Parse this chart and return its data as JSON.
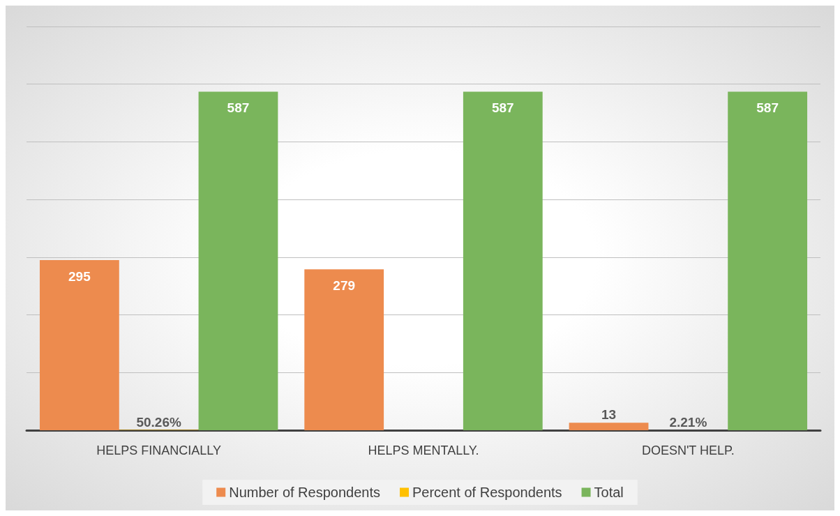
{
  "chart_data": {
    "type": "bar",
    "categories": [
      "HELPS FINANCIALLY",
      "HELPS MENTALLY.",
      "DOESN'T HELP."
    ],
    "series": [
      {
        "name": "Number of Respondents",
        "color": "#ed8b4e",
        "values": [
          295,
          279,
          13
        ],
        "value_labels": [
          "295",
          "279",
          "13"
        ]
      },
      {
        "name": "Percent of Respondents",
        "color": "#ffc000",
        "values": [
          0.5026,
          null,
          0.0221
        ],
        "value_labels": [
          "50.26%",
          null,
          "2.21%"
        ]
      },
      {
        "name": "Total",
        "color": "#7ab55c",
        "values": [
          587,
          587,
          587
        ],
        "value_labels": [
          "587",
          "587",
          "587"
        ]
      }
    ],
    "ylim": [
      0,
      700
    ],
    "yticks": [
      {
        "value": 0,
        "label": null
      },
      {
        "value": 100,
        "label": null
      },
      {
        "value": 200,
        "label": null
      },
      {
        "value": 300,
        "label": null
      },
      {
        "value": 400,
        "label": null
      },
      {
        "value": 500,
        "label": null
      },
      {
        "value": 600,
        "label": null
      },
      {
        "value": 700,
        "label": null
      }
    ],
    "tick_labels": "x",
    "grid": "y",
    "legend": "bottom"
  }
}
